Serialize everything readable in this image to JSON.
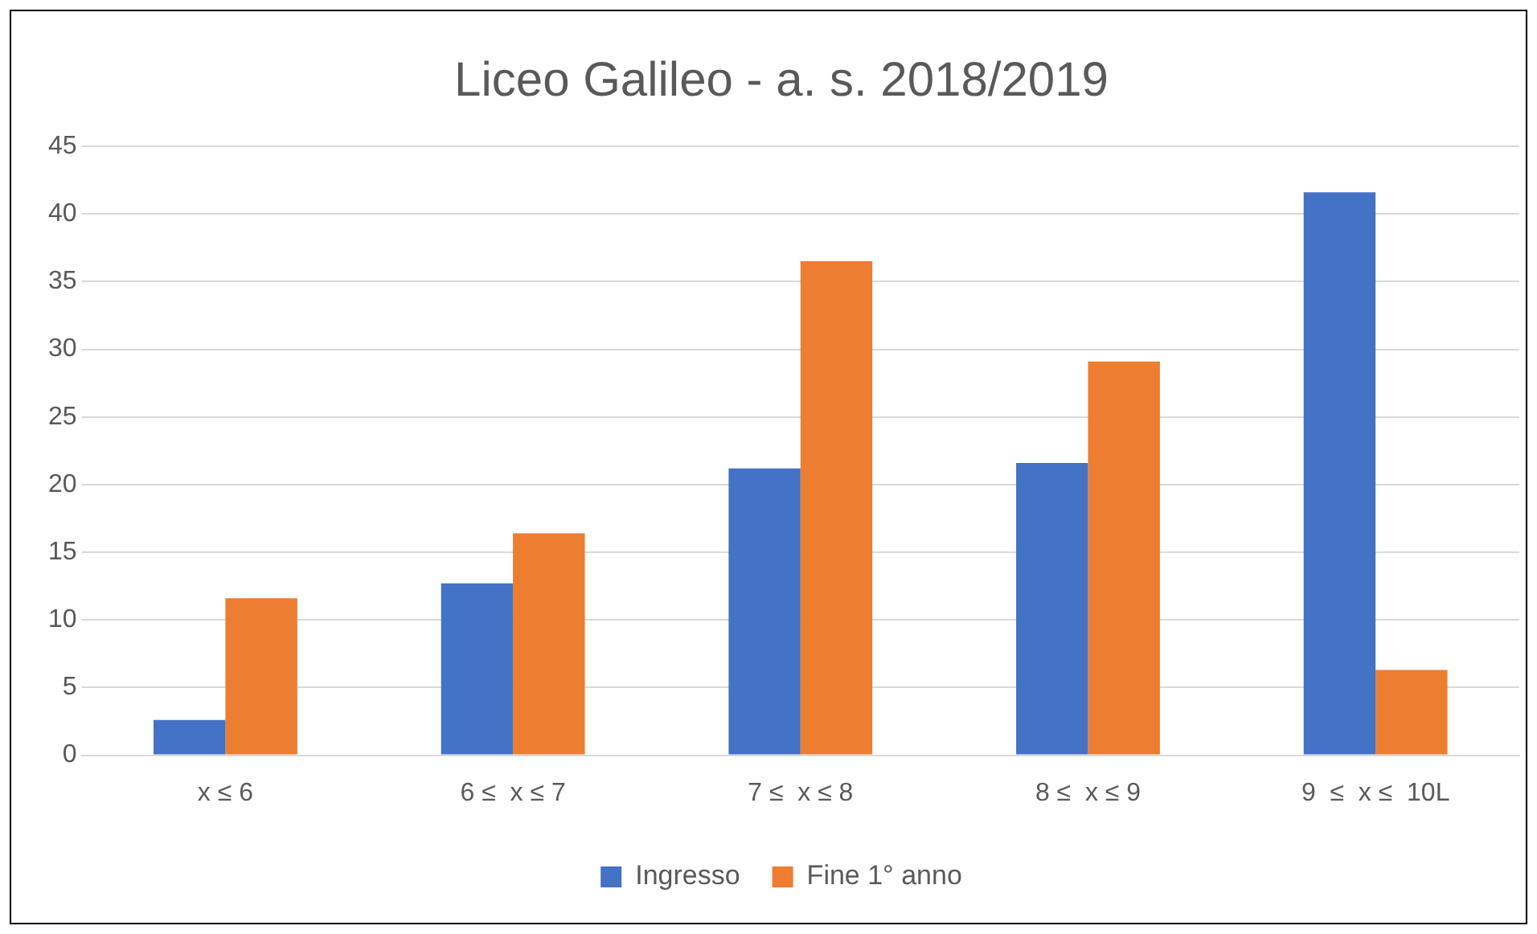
{
  "chart_data": {
    "type": "bar",
    "title": "Liceo Galileo - a. s. 2018/2019",
    "categories": [
      "x ≤ 6",
      "6 ≤  x ≤ 7",
      "7 ≤  x ≤ 8",
      "8 ≤  x ≤ 9",
      "9  ≤  x ≤  10L"
    ],
    "series": [
      {
        "name": "Ingresso",
        "color": "#4472c4",
        "values": [
          2.6,
          12.7,
          21.2,
          21.6,
          41.6
        ]
      },
      {
        "name": "Fine 1° anno",
        "color": "#ed7d31",
        "values": [
          11.6,
          16.4,
          36.5,
          29.1,
          6.3
        ]
      }
    ],
    "ylim": [
      0,
      45
    ],
    "yticks": [
      0,
      5,
      10,
      15,
      20,
      25,
      30,
      35,
      40,
      45
    ],
    "grid": "y",
    "legend": "bottom"
  }
}
